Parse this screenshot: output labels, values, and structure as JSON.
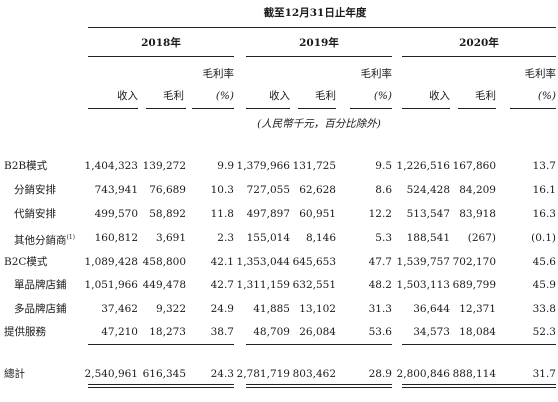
{
  "header": {
    "period": "截至12月31日止年度",
    "years": [
      "2018年",
      "2019年",
      "2020年"
    ],
    "col_revenue": "收入",
    "col_gross_profit": "毛利",
    "col_margin_line1": "毛利率",
    "col_margin_line2": "(%)",
    "unit_note": "(人民幣千元，百分比除外)"
  },
  "rows": [
    {
      "label": "B2B模式",
      "indent": 0,
      "values": [
        "1,404,323",
        "139,272",
        "9.9",
        "1,379,966",
        "131,725",
        "9.5",
        "1,226,516",
        "167,860",
        "13.7"
      ]
    },
    {
      "label": "分銷安排",
      "indent": 1,
      "values": [
        "743,941",
        "76,689",
        "10.3",
        "727,055",
        "62,628",
        "8.6",
        "524,428",
        "84,209",
        "16.1"
      ]
    },
    {
      "label": "代銷安排",
      "indent": 1,
      "values": [
        "499,570",
        "58,892",
        "11.8",
        "497,897",
        "60,951",
        "12.2",
        "513,547",
        "83,918",
        "16.3"
      ]
    },
    {
      "label": "其他分銷商",
      "sup": "(1)",
      "indent": 1,
      "values": [
        "160,812",
        "3,691",
        "2.3",
        "155,014",
        "8,146",
        "5.3",
        "188,541",
        "(267)",
        "(0.1)"
      ]
    },
    {
      "label": "B2C模式",
      "indent": 0,
      "values": [
        "1,089,428",
        "458,800",
        "42.1",
        "1,353,044",
        "645,653",
        "47.7",
        "1,539,757",
        "702,170",
        "45.6"
      ]
    },
    {
      "label": "單品牌店鋪",
      "indent": 1,
      "values": [
        "1,051,966",
        "449,478",
        "42.7",
        "1,311,159",
        "632,551",
        "48.2",
        "1,503,113",
        "689,799",
        "45.9"
      ]
    },
    {
      "label": "多品牌店鋪",
      "indent": 1,
      "values": [
        "37,462",
        "9,322",
        "24.9",
        "41,885",
        "13,102",
        "31.3",
        "36,644",
        "12,371",
        "33.8"
      ]
    },
    {
      "label": "提供服務",
      "indent": 0,
      "values": [
        "47,210",
        "18,273",
        "38.7",
        "48,709",
        "26,084",
        "53.6",
        "34,573",
        "18,084",
        "52.3"
      ]
    }
  ],
  "total": {
    "label": "總計",
    "values": [
      "2,540,961",
      "616,345",
      "24.3",
      "2,781,719",
      "803,462",
      "28.9",
      "2,800,846",
      "888,114",
      "31.7"
    ]
  }
}
